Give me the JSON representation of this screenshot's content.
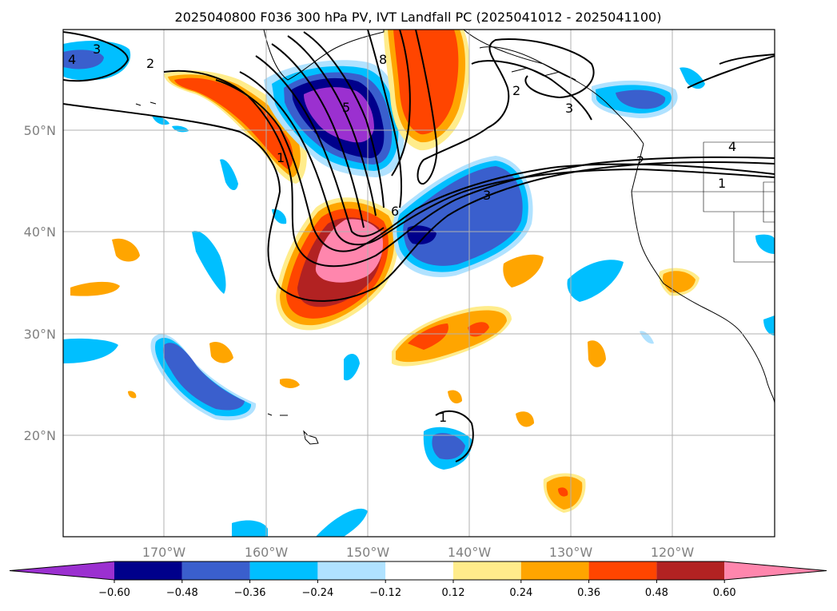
{
  "title": "2025040800 F036 300 hPa PV, IVT Landfall PC (2025041012 - 2025041100)",
  "lat_labels": [
    "50°N",
    "40°N",
    "30°N",
    "20°N"
  ],
  "lon_labels": [
    "170°W",
    "160°W",
    "150°W",
    "140°W",
    "130°W",
    "120°W"
  ],
  "colorbar": {
    "ticks": [
      "−0.60",
      "−0.48",
      "−0.36",
      "−0.24",
      "−0.12",
      "0.12",
      "0.24",
      "0.36",
      "0.48",
      "0.60"
    ],
    "colors": [
      "#9b30d0",
      "#00008b",
      "#3a5fcd",
      "#00bfff",
      "#b0e2ff",
      "#ffffff",
      "#ffec8b",
      "#ffa500",
      "#ff4500",
      "#b22222",
      "#ff86ad"
    ]
  },
  "contour_labels": [
    "3",
    "4",
    "2",
    "8",
    "5",
    "1",
    "6",
    "3",
    "2",
    "3",
    "4",
    "2",
    "1",
    "1"
  ]
}
